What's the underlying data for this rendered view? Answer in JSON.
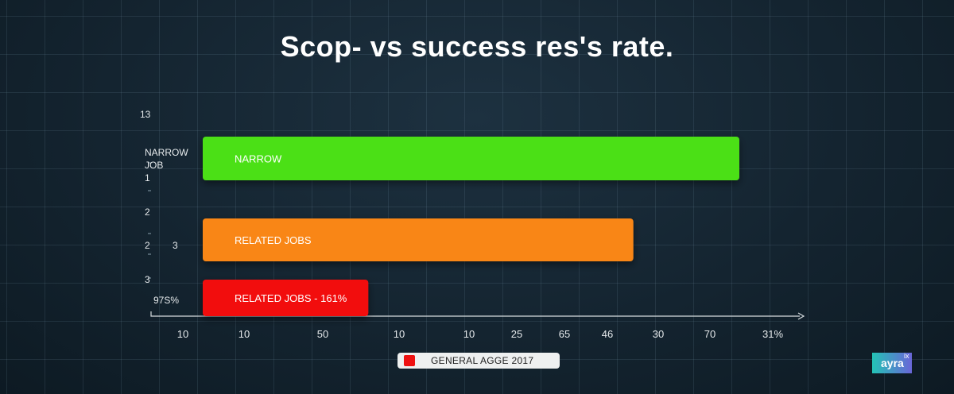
{
  "chart_data": {
    "type": "bar",
    "orientation": "horizontal",
    "title": "Scop- vs success res's rate.",
    "bars": [
      {
        "label": "NARROW",
        "value": 86,
        "color": "#4be016"
      },
      {
        "label": "RELATED JOBS",
        "value": 70,
        "color": "#f98612"
      },
      {
        "label": "RELATED JOBS - 161%",
        "value": 30,
        "color": "#f20c0c"
      }
    ],
    "xlim": [
      5,
      95
    ],
    "x_tick_labels": [
      "10",
      "10",
      "50",
      "10",
      "10",
      "25",
      "65",
      "46",
      "30",
      "70",
      "31%"
    ],
    "y_tick_labels": [
      "13",
      "NARROW",
      "JOB",
      "1",
      "2",
      "2",
      "3",
      "3",
      "97S%"
    ],
    "legend": {
      "position": "bottom",
      "entries": [
        {
          "label": "GENERAL AGGE 2017",
          "color": "#ee1111"
        }
      ]
    },
    "grid": true
  },
  "brand": {
    "name": "ayra",
    "superscript": "ix"
  }
}
